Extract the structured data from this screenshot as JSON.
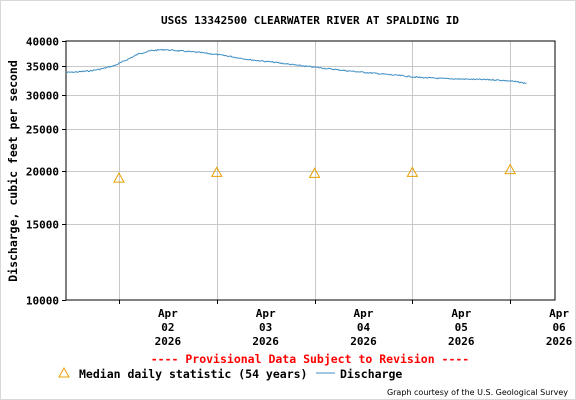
{
  "chart_data": {
    "type": "line",
    "title": "USGS 13342500 CLEARWATER RIVER AT SPALDING ID",
    "ylabel": "Discharge, cubic feet per second",
    "xlabel": "",
    "yscale": "log",
    "ylim": [
      10000,
      40000
    ],
    "yticks": [
      10000,
      15000,
      20000,
      25000,
      30000,
      35000,
      40000
    ],
    "ytick_labels": [
      "10000",
      "15000",
      "20000",
      "25000",
      "30000",
      "35000",
      "40000"
    ],
    "xlim": [
      "2026-04-01T11:00",
      "2026-04-06T11:00"
    ],
    "xticks": [
      {
        "date": "2026-04-02",
        "label": [
          "Apr",
          "02",
          "2026"
        ]
      },
      {
        "date": "2026-04-03",
        "label": [
          "Apr",
          "03",
          "2026"
        ]
      },
      {
        "date": "2026-04-04",
        "label": [
          "Apr",
          "04",
          "2026"
        ]
      },
      {
        "date": "2026-04-05",
        "label": [
          "Apr",
          "05",
          "2026"
        ]
      },
      {
        "date": "2026-04-06",
        "label": [
          "Apr",
          "06",
          "2026"
        ]
      }
    ],
    "grid": true,
    "series": [
      {
        "name": "Discharge",
        "color": "#3f8fc4",
        "style": "line",
        "points": [
          [
            "2026-04-01T11:00",
            33800
          ],
          [
            "2026-04-01T14:00",
            33900
          ],
          [
            "2026-04-01T17:00",
            34100
          ],
          [
            "2026-04-01T20:00",
            34500
          ],
          [
            "2026-04-01T23:00",
            35100
          ],
          [
            "2026-04-02T02:00",
            36200
          ],
          [
            "2026-04-02T05:00",
            37400
          ],
          [
            "2026-04-02T08:00",
            38000
          ],
          [
            "2026-04-02T11:00",
            38200
          ],
          [
            "2026-04-02T14:00",
            38000
          ],
          [
            "2026-04-02T20:00",
            37600
          ],
          [
            "2026-04-03T02:00",
            37000
          ],
          [
            "2026-04-03T08:00",
            36200
          ],
          [
            "2026-04-03T14:00",
            35700
          ],
          [
            "2026-04-03T20:00",
            35100
          ],
          [
            "2026-04-04T02:00",
            34600
          ],
          [
            "2026-04-04T08:00",
            34100
          ],
          [
            "2026-04-04T14:00",
            33700
          ],
          [
            "2026-04-04T20:00",
            33300
          ],
          [
            "2026-04-05T02:00",
            32900
          ],
          [
            "2026-04-05T08:00",
            32700
          ],
          [
            "2026-04-05T14:00",
            32600
          ],
          [
            "2026-04-05T20:00",
            32500
          ],
          [
            "2026-04-06T00:00",
            32300
          ],
          [
            "2026-04-06T03:00",
            32000
          ],
          [
            "2026-04-06T04:00",
            31900
          ]
        ]
      },
      {
        "name": "Median daily statistic (54 years)",
        "color": "#e8a000",
        "style": "triangle",
        "points": [
          [
            "2026-04-02T00:00",
            19200
          ],
          [
            "2026-04-03T00:00",
            19800
          ],
          [
            "2026-04-04T00:00",
            19700
          ],
          [
            "2026-04-05T00:00",
            19800
          ],
          [
            "2026-04-06T00:00",
            20100
          ]
        ]
      }
    ]
  },
  "provisional_note": "---- Provisional Data Subject to Revision ----",
  "legend": {
    "median_label": "Median daily statistic (54 years)",
    "discharge_label": "Discharge"
  },
  "credit": "Graph courtesy of the U.S. Geological Survey"
}
